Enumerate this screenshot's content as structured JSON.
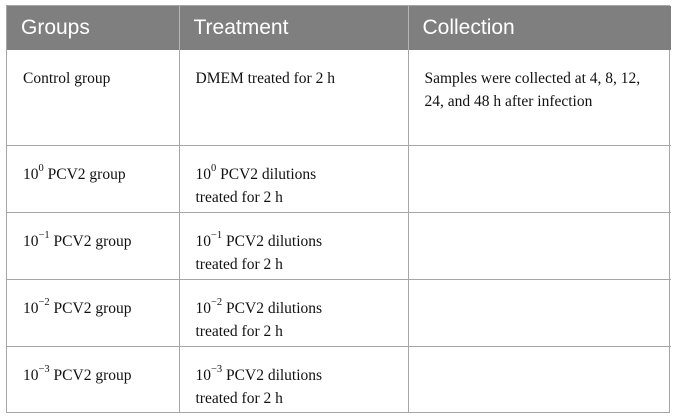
{
  "header": {
    "groups": "Groups",
    "treatment": "Treatment",
    "collection": "Collection"
  },
  "rows": [
    {
      "group": "Control group",
      "treatment": "DMEM treated for 2 h",
      "collection": "Samples were collected at 4, 8, 12, 24, and 48 h after infection"
    },
    {
      "group_base": "10",
      "group_exp": "0",
      "group_rest": " PCV2 group",
      "treat_base": "10",
      "treat_exp": "0",
      "treat_rest": " PCV2 dilutions",
      "treat_line2": "treated for 2 h",
      "collection": ""
    },
    {
      "group_base": "10",
      "group_exp": "−1",
      "group_rest": " PCV2 group",
      "treat_base": "10",
      "treat_exp": "−1",
      "treat_rest": " PCV2 dilutions",
      "treat_line2": "treated for 2 h",
      "collection": ""
    },
    {
      "group_base": "10",
      "group_exp": "−2",
      "group_rest": " PCV2 group",
      "treat_base": "10",
      "treat_exp": "−2",
      "treat_rest": " PCV2 dilutions",
      "treat_line2": "treated for 2 h",
      "collection": ""
    },
    {
      "group_base": "10",
      "group_exp": "−3",
      "group_rest": " PCV2 group",
      "treat_base": "10",
      "treat_exp": "−3",
      "treat_rest": " PCV2 dilutions",
      "treat_line2": "treated for 2 h",
      "collection": ""
    }
  ]
}
